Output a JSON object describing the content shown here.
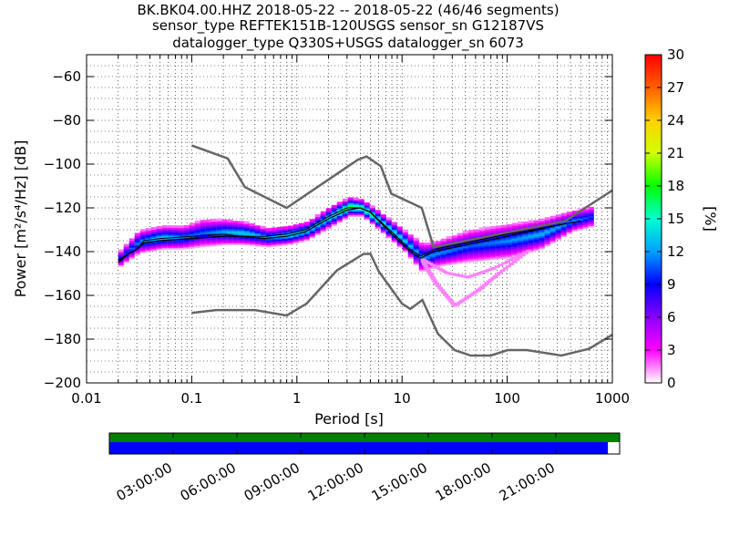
{
  "title_lines": [
    "BK.BK04.00.HHZ   2018-05-22 -- 2018-05-22  (46/46 segments)",
    "sensor_type REFTEK151B-120USGS sensor_sn G12187VS",
    "datalogger_type Q330S+USGS datalogger_sn 6073"
  ],
  "chart_data": {
    "type": "heatmap",
    "title": "BK.BK04.00.HHZ   2018-05-22 -- 2018-05-22  (46/46 segments)",
    "xlabel": "Period [s]",
    "ylabel": "Power [m²/s⁴/Hz] [dB]",
    "xscale": "log",
    "xlim": [
      0.01,
      1000
    ],
    "ylim": [
      -200,
      -50
    ],
    "x_ticks": [
      0.01,
      0.1,
      1,
      10,
      100,
      1000
    ],
    "x_tick_labels": [
      "0.01",
      "0.1",
      "1",
      "10",
      "100",
      "1000"
    ],
    "y_ticks": [
      -200,
      -180,
      -160,
      -140,
      -120,
      -100,
      -80,
      -60
    ],
    "y_tick_labels": [
      "−200",
      "−180",
      "−160",
      "−140",
      "−120",
      "−100",
      "−80",
      "−60"
    ],
    "grid": "dotted, on",
    "colorbar": {
      "label": "[%]",
      "range": [
        0,
        30
      ],
      "ticks": [
        0,
        3,
        6,
        9,
        12,
        15,
        18,
        21,
        24,
        27,
        30
      ],
      "colormap": [
        "#ffffff",
        "#ff00ff",
        "#8a00ff",
        "#0000ff",
        "#00a0ff",
        "#00ffd0",
        "#00ff00",
        "#d0ff00",
        "#ffd000",
        "#ff6000",
        "#ff0000"
      ]
    },
    "high_noise_model": [
      [
        0.1,
        -91.5
      ],
      [
        0.22,
        -97.4
      ],
      [
        0.32,
        -110.5
      ],
      [
        0.8,
        -120
      ],
      [
        3.8,
        -98
      ],
      [
        4.6,
        -96.5
      ],
      [
        6.3,
        -101
      ],
      [
        7.9,
        -113.5
      ],
      [
        15.4,
        -120
      ],
      [
        20,
        -138
      ],
      [
        354.8,
        -126
      ],
      [
        1000,
        -112
      ]
    ],
    "low_noise_model": [
      [
        0.1,
        -168
      ],
      [
        0.17,
        -166.7
      ],
      [
        0.4,
        -166.7
      ],
      [
        0.8,
        -169.2
      ],
      [
        1.24,
        -163.7
      ],
      [
        2.4,
        -148.6
      ],
      [
        4.3,
        -141.1
      ],
      [
        5,
        -141
      ],
      [
        6,
        -149
      ],
      [
        10,
        -163.8
      ],
      [
        12,
        -166.2
      ],
      [
        15.6,
        -162.1
      ],
      [
        21.9,
        -177.5
      ],
      [
        31.6,
        -185
      ],
      [
        45,
        -187.5
      ],
      [
        70,
        -187.5
      ],
      [
        101,
        -185
      ],
      [
        154,
        -185
      ],
      [
        328,
        -187.5
      ],
      [
        600,
        -184.4
      ],
      [
        1000,
        -178
      ]
    ],
    "mode_curve": [
      [
        0.02,
        -145
      ],
      [
        0.025,
        -141
      ],
      [
        0.03,
        -139
      ],
      [
        0.035,
        -136
      ],
      [
        0.05,
        -135
      ],
      [
        0.1,
        -134
      ],
      [
        0.2,
        -133
      ],
      [
        0.3,
        -133
      ],
      [
        0.5,
        -134
      ],
      [
        0.8,
        -133
      ],
      [
        1.2,
        -131
      ],
      [
        2,
        -125
      ],
      [
        3,
        -121
      ],
      [
        4,
        -120
      ],
      [
        5,
        -122
      ],
      [
        8,
        -132
      ],
      [
        12,
        -140
      ],
      [
        15,
        -143
      ],
      [
        20,
        -140
      ],
      [
        40,
        -137
      ],
      [
        100,
        -133
      ],
      [
        300,
        -128
      ],
      [
        500,
        -126
      ]
    ],
    "mean_curve": [
      [
        0.02,
        -144
      ],
      [
        0.025,
        -141
      ],
      [
        0.03,
        -139
      ],
      [
        0.035,
        -135
      ],
      [
        0.05,
        -134
      ],
      [
        0.1,
        -133
      ],
      [
        0.2,
        -132
      ],
      [
        0.3,
        -133
      ],
      [
        0.5,
        -133
      ],
      [
        0.8,
        -132
      ],
      [
        1.2,
        -130
      ],
      [
        2,
        -124
      ],
      [
        3,
        -120
      ],
      [
        4,
        -120
      ],
      [
        5,
        -122
      ],
      [
        8,
        -131
      ],
      [
        12,
        -139
      ],
      [
        15,
        -142
      ],
      [
        20,
        -139
      ],
      [
        40,
        -136
      ],
      [
        100,
        -132
      ],
      [
        300,
        -128
      ],
      [
        500,
        -126
      ]
    ],
    "distribution": [
      {
        "x": 0.02,
        "lo": -147,
        "hi": -140,
        "pct": 10
      },
      {
        "x": 0.03,
        "lo": -141,
        "hi": -131,
        "pct": 12
      },
      {
        "x": 0.05,
        "lo": -139,
        "hi": -129,
        "pct": 14
      },
      {
        "x": 0.08,
        "lo": -139,
        "hi": -129,
        "pct": 12
      },
      {
        "x": 0.12,
        "lo": -138,
        "hi": -126,
        "pct": 11
      },
      {
        "x": 0.2,
        "lo": -137,
        "hi": -126,
        "pct": 13
      },
      {
        "x": 0.3,
        "lo": -137,
        "hi": -127,
        "pct": 14
      },
      {
        "x": 0.5,
        "lo": -138,
        "hi": -130,
        "pct": 13
      },
      {
        "x": 0.8,
        "lo": -137,
        "hi": -129,
        "pct": 15
      },
      {
        "x": 1.2,
        "lo": -135,
        "hi": -127,
        "pct": 14
      },
      {
        "x": 2,
        "lo": -129,
        "hi": -120,
        "pct": 15
      },
      {
        "x": 3,
        "lo": -124,
        "hi": -116,
        "pct": 19
      },
      {
        "x": 4,
        "lo": -124,
        "hi": -117,
        "pct": 18
      },
      {
        "x": 6,
        "lo": -131,
        "hi": -123,
        "pct": 16
      },
      {
        "x": 10,
        "lo": -140,
        "hi": -131,
        "pct": 14
      },
      {
        "x": 15,
        "lo": -150,
        "hi": -137,
        "pct": 12
      },
      {
        "x": 20,
        "lo": -147,
        "hi": -136,
        "pct": 12
      },
      {
        "x": 40,
        "lo": -145,
        "hi": -131,
        "pct": 11
      },
      {
        "x": 100,
        "lo": -143,
        "hi": -128,
        "pct": 12
      },
      {
        "x": 200,
        "lo": -139,
        "hi": -126,
        "pct": 13
      },
      {
        "x": 400,
        "lo": -131,
        "hi": -122,
        "pct": 12
      },
      {
        "x": 600,
        "lo": -129,
        "hi": -120,
        "pct": 10
      }
    ],
    "outlier_tails": [
      [
        [
          15,
          -145
        ],
        [
          20,
          -155
        ],
        [
          30,
          -165
        ],
        [
          50,
          -158
        ],
        [
          80,
          -150
        ],
        [
          150,
          -140
        ]
      ],
      [
        [
          15,
          -144
        ],
        [
          25,
          -150
        ],
        [
          40,
          -152
        ],
        [
          70,
          -148
        ],
        [
          150,
          -140
        ]
      ]
    ],
    "coverage": {
      "time_ticks": [
        "03:00:00",
        "06:00:00",
        "09:00:00",
        "12:00:00",
        "15:00:00",
        "18:00:00",
        "21:00:00"
      ],
      "time_tick_hours": [
        3,
        6,
        9,
        12,
        15,
        18,
        21
      ],
      "range_hours": [
        0,
        24
      ],
      "data_fraction": 0.977,
      "gap_fraction": 1.0,
      "data_color": "#0000ff",
      "gap_color": "#008000"
    }
  }
}
